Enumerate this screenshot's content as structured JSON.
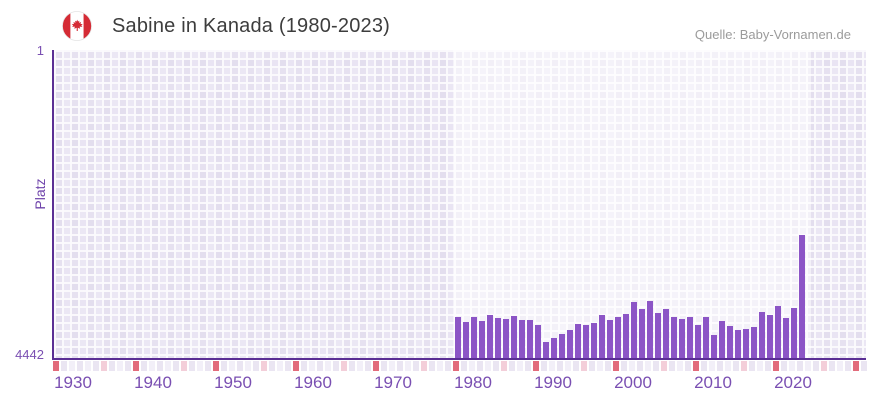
{
  "header": {
    "title": "Sabine in Kanada (1980-2023)",
    "source": "Quelle: Baby-Vornamen.de",
    "flag": "canada-flag-icon"
  },
  "chart_data": {
    "type": "bar",
    "title": "Sabine in Kanada (1980-2023)",
    "xlabel": "",
    "ylabel": "Platz",
    "y_axis_inverted": true,
    "ylim": [
      1,
      4442
    ],
    "y_tick_labels": [
      "1",
      "4442"
    ],
    "x_tick_labels": [
      "1930",
      "1940",
      "1950",
      "1960",
      "1970",
      "1980",
      "1990",
      "2000",
      "2010",
      "2020"
    ],
    "grid": true,
    "legend": "none",
    "bar_color": "#8c55c6",
    "axis_color": "#5b2f94",
    "tick_label_color": "#7a4fb2",
    "plot_bg_color": "#e6e1f0",
    "highlight_band": {
      "from_year": 1980,
      "to_year": 2023,
      "effect": "lightened-background"
    },
    "timeline_marker_strip": {
      "decade_marker_color": "#e26b7b",
      "mid_decade_marker_color": "#f3ced9",
      "base_colors": [
        "#f2eff8",
        "#eae5f2"
      ]
    },
    "categories": [
      1980,
      1981,
      1982,
      1983,
      1984,
      1985,
      1986,
      1987,
      1988,
      1989,
      1990,
      1991,
      1992,
      1993,
      1994,
      1995,
      1996,
      1997,
      1998,
      1999,
      2000,
      2001,
      2002,
      2003,
      2004,
      2005,
      2006,
      2007,
      2008,
      2009,
      2010,
      2011,
      2012,
      2013,
      2014,
      2015,
      2016,
      2017,
      2018,
      2019,
      2020,
      2021,
      2022,
      2023
    ],
    "series": [
      {
        "name": "Platz",
        "values": [
          3850,
          3930,
          3850,
          3910,
          3815,
          3865,
          3880,
          3835,
          3895,
          3895,
          3970,
          4215,
          4160,
          4095,
          4045,
          3950,
          3965,
          3940,
          3820,
          3895,
          3850,
          3810,
          3640,
          3740,
          3620,
          3800,
          3730,
          3855,
          3875,
          3855,
          3960,
          3850,
          4105,
          3915,
          3975,
          4040,
          4025,
          3990,
          3785,
          3820,
          3690,
          3870,
          3725,
          2670
        ]
      }
    ]
  }
}
